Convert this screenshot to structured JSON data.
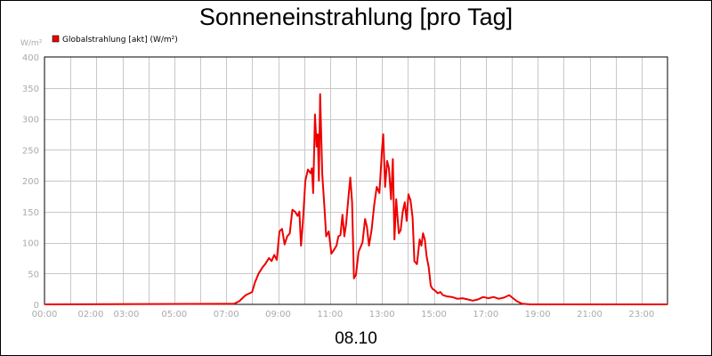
{
  "chart_data": {
    "type": "line",
    "title": "Sonneneinstrahlung [pro Tag]",
    "ylabel": "W/m²",
    "xlabel": "08.10",
    "ylim": [
      0,
      400
    ],
    "xlim": [
      0,
      24
    ],
    "yticks": [
      0,
      50,
      100,
      150,
      200,
      250,
      300,
      350,
      400
    ],
    "xticks": [
      {
        "pos": 0,
        "label": "00:00"
      },
      {
        "pos": 2,
        "label": "02:00"
      },
      {
        "pos": 3,
        "label": "03:00"
      },
      {
        "pos": 5,
        "label": "05:00"
      },
      {
        "pos": 7,
        "label": "07:00"
      },
      {
        "pos": 9,
        "label": "09:00"
      },
      {
        "pos": 11,
        "label": "11:00"
      },
      {
        "pos": 13,
        "label": "13:00"
      },
      {
        "pos": 15,
        "label": "15:00"
      },
      {
        "pos": 17,
        "label": "17:00"
      },
      {
        "pos": 19,
        "label": "19:00"
      },
      {
        "pos": 21,
        "label": "21:00"
      },
      {
        "pos": 23,
        "label": "23:00"
      }
    ],
    "grid": true,
    "legend_position": "top-left",
    "series": [
      {
        "name": "Globalstrahlung [akt] (W/m²)",
        "color": "#ee0000",
        "x": [
          0,
          7.3,
          7.5,
          7.75,
          8.0,
          8.1,
          8.25,
          8.4,
          8.5,
          8.65,
          8.75,
          8.85,
          8.95,
          9.05,
          9.15,
          9.25,
          9.35,
          9.45,
          9.55,
          9.65,
          9.75,
          9.82,
          9.88,
          9.95,
          10.05,
          10.15,
          10.25,
          10.3,
          10.35,
          10.42,
          10.48,
          10.53,
          10.57,
          10.62,
          10.7,
          10.78,
          10.85,
          10.95,
          11.05,
          11.15,
          11.25,
          11.32,
          11.4,
          11.48,
          11.55,
          11.62,
          11.7,
          11.78,
          11.85,
          11.92,
          12.0,
          12.1,
          12.25,
          12.35,
          12.42,
          12.5,
          12.6,
          12.7,
          12.8,
          12.9,
          13.0,
          13.05,
          13.12,
          13.2,
          13.27,
          13.35,
          13.42,
          13.48,
          13.55,
          13.6,
          13.65,
          13.72,
          13.8,
          13.88,
          13.95,
          14.02,
          14.1,
          14.18,
          14.25,
          14.35,
          14.45,
          14.52,
          14.58,
          14.65,
          14.72,
          14.8,
          14.88,
          14.95,
          15.05,
          15.15,
          15.25,
          15.35,
          15.5,
          15.7,
          15.9,
          16.1,
          16.3,
          16.5,
          16.7,
          16.9,
          17.1,
          17.3,
          17.5,
          17.7,
          17.9,
          18.05,
          18.2,
          18.4,
          18.7,
          24
        ],
        "values": [
          0,
          1,
          5,
          15,
          20,
          35,
          50,
          60,
          65,
          75,
          70,
          80,
          72,
          118,
          122,
          97,
          110,
          115,
          153,
          150,
          143,
          150,
          95,
          130,
          200,
          218,
          212,
          220,
          180,
          307,
          255,
          275,
          200,
          340,
          210,
          160,
          110,
          118,
          82,
          88,
          95,
          110,
          112,
          145,
          110,
          130,
          170,
          205,
          165,
          42,
          48,
          85,
          100,
          138,
          125,
          95,
          120,
          160,
          190,
          180,
          250,
          275,
          190,
          232,
          220,
          170,
          235,
          105,
          170,
          140,
          115,
          120,
          150,
          165,
          135,
          178,
          168,
          140,
          70,
          65,
          105,
          95,
          115,
          105,
          78,
          60,
          30,
          25,
          22,
          18,
          20,
          15,
          13,
          12,
          9,
          10,
          8,
          6,
          8,
          12,
          10,
          12,
          9,
          11,
          15,
          10,
          5,
          1,
          0,
          0
        ]
      }
    ]
  }
}
